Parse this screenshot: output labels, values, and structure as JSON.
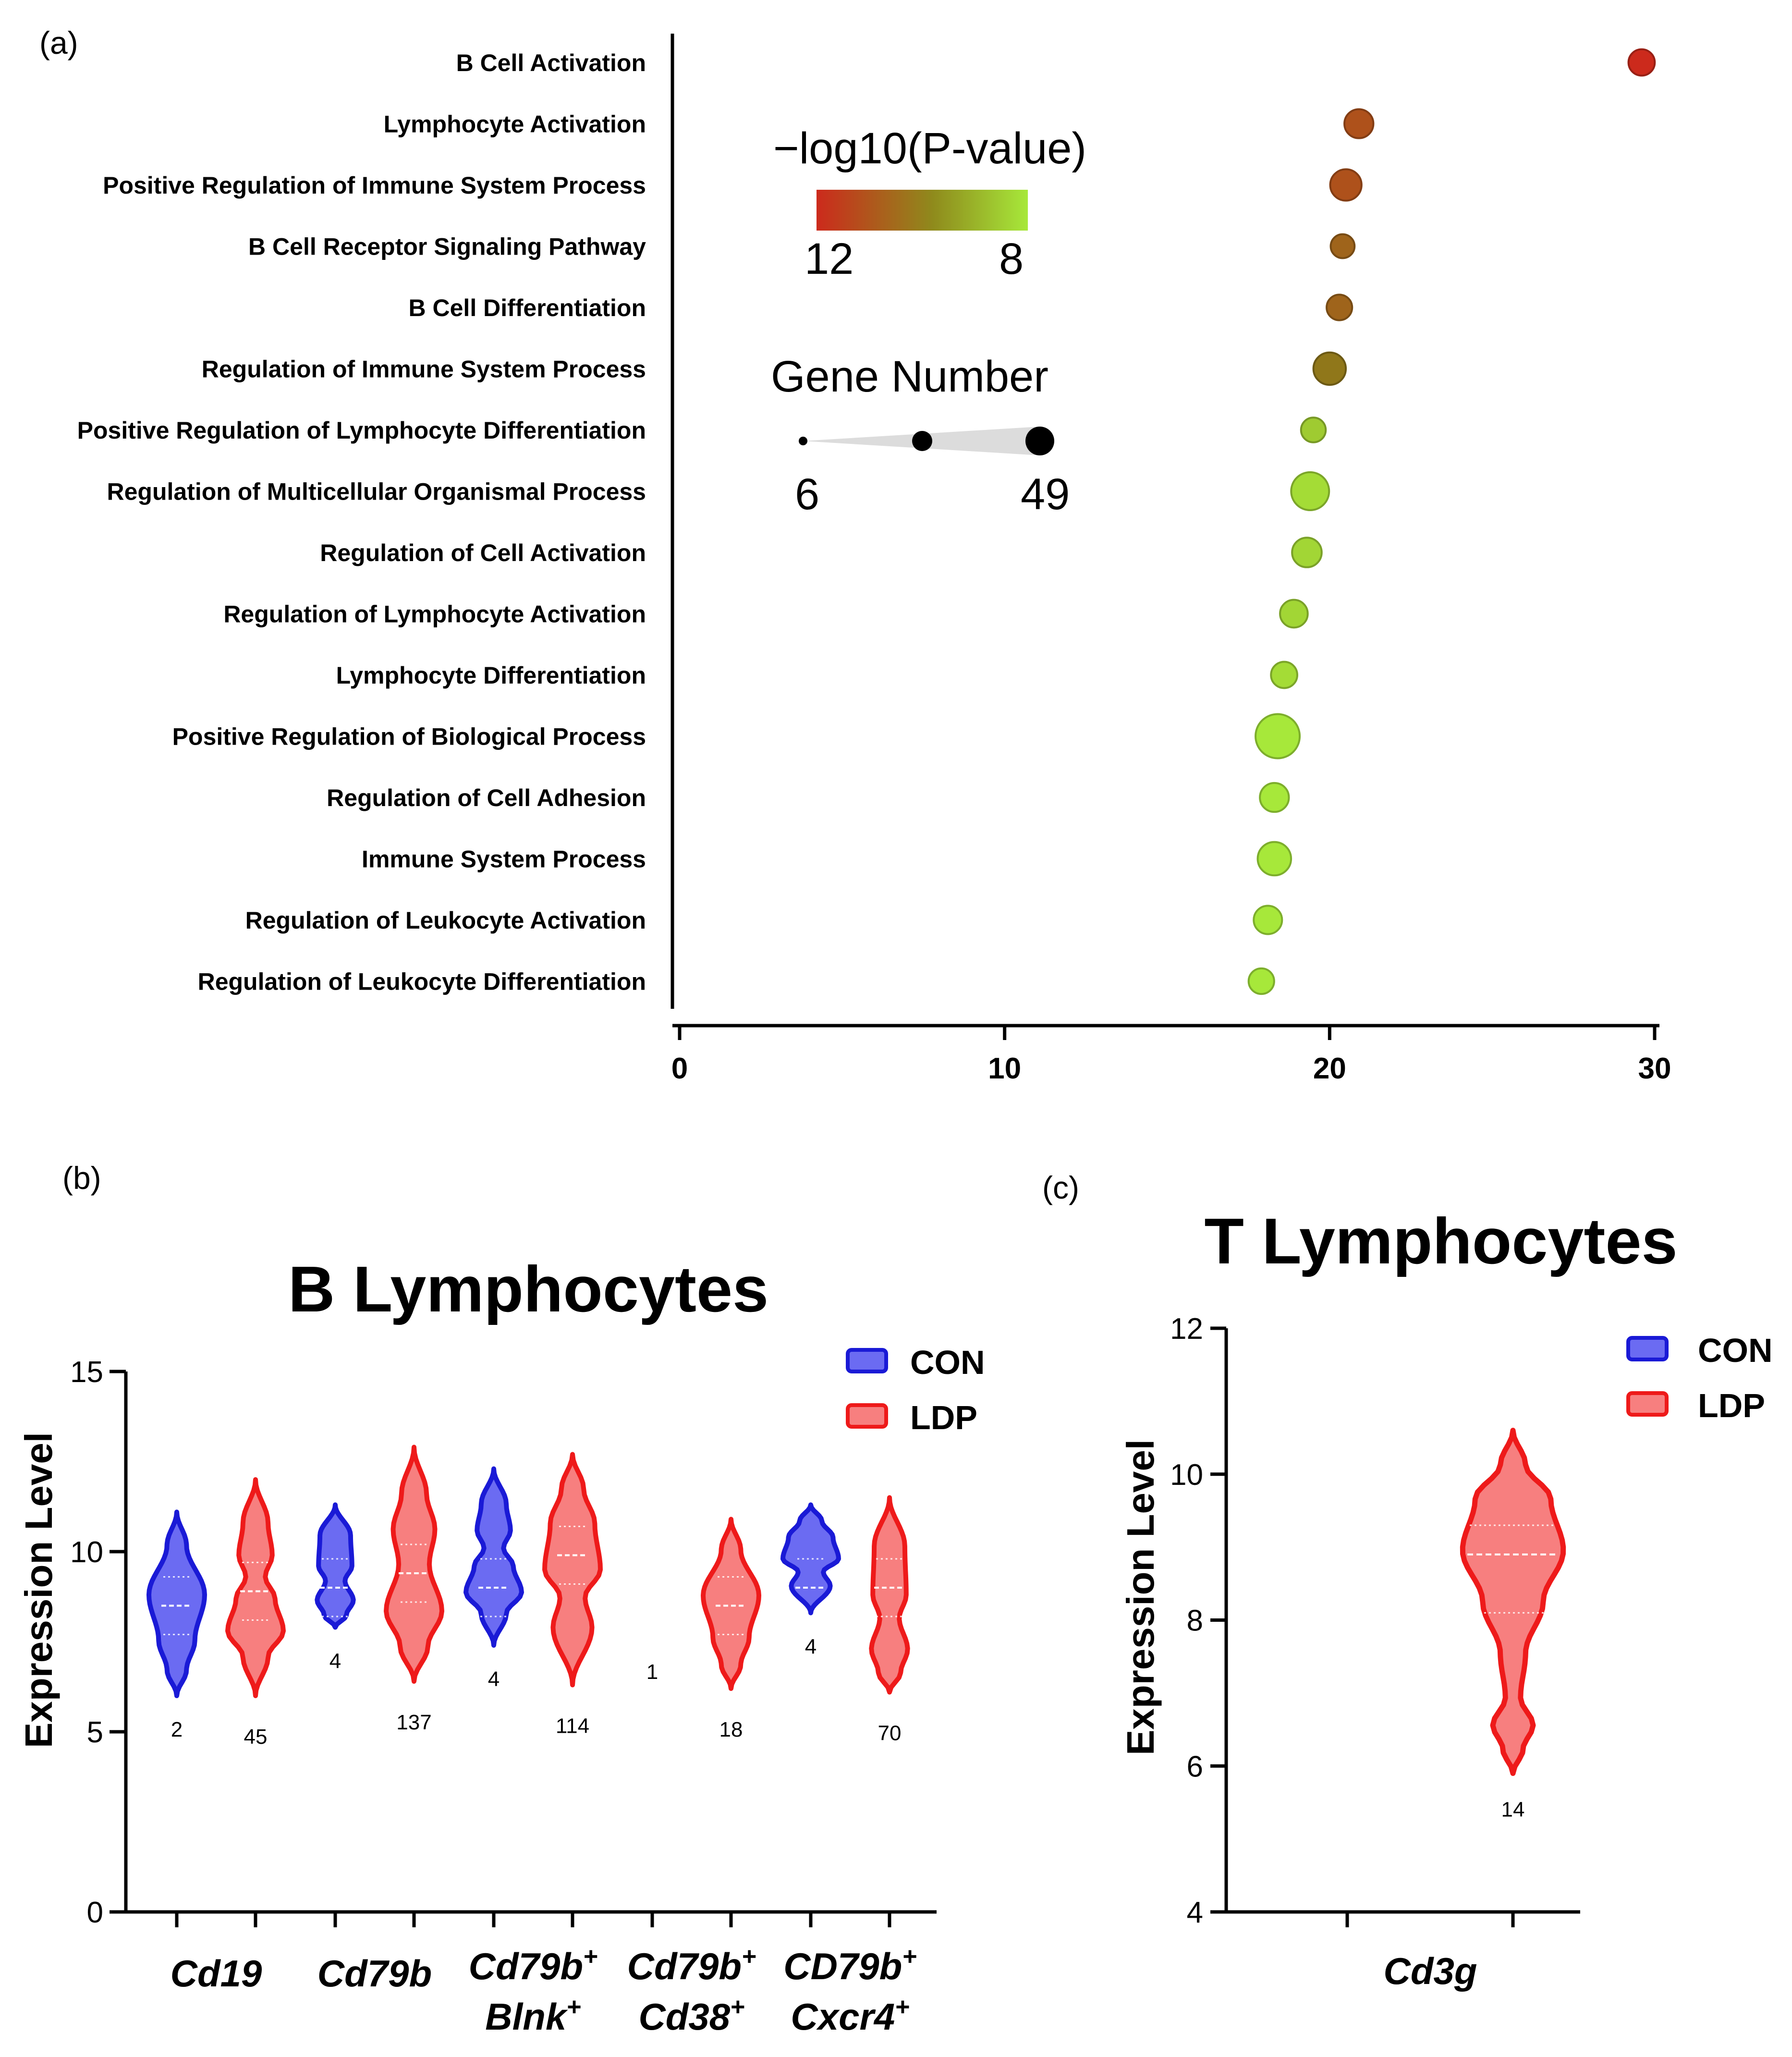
{
  "panel_labels": {
    "a": "(a)",
    "b": "(b)",
    "c": "(c)"
  },
  "colors": {
    "grad_high": "#cc2a1c",
    "grad_mid": "#8a7f1a",
    "grad_low": "#a7e83a",
    "con_fill": "#6b6bf2",
    "con_edge": "#1a1ad6",
    "ldp_fill": "#f77f7f",
    "ldp_edge": "#ee1a1a"
  },
  "chart_data": [
    {
      "type": "scatter",
      "title": "",
      "xlabel": "",
      "ylabel": "",
      "xlim": [
        0,
        30
      ],
      "xticks": [
        "0",
        "10",
        "20",
        "30"
      ],
      "categories": [
        "B Cell Activation",
        "Lymphocyte Activation",
        "Positive Regulation of Immune System Process",
        "B Cell Receptor Signaling Pathway",
        "B Cell Differentiation",
        "Regulation of Immune System Process",
        "Positive Regulation of Lymphocyte Differentiation",
        "Regulation of Multicellular Organismal Process",
        "Regulation of Cell Activation",
        "Regulation of Lymphocyte Activation",
        "Lymphocyte Differentiation",
        "Positive Regulation of Biological Process",
        "Regulation of Cell Adhesion",
        "Immune System Process",
        "Regulation of Leukocyte Activation",
        "Regulation of Leukocyte Differentiation"
      ],
      "x": [
        29.6,
        20.9,
        20.5,
        20.4,
        20.3,
        20.0,
        19.5,
        19.4,
        19.3,
        18.9,
        18.6,
        18.4,
        18.3,
        18.3,
        18.1,
        17.9
      ],
      "gene_number": [
        10,
        14,
        18,
        7,
        9,
        20,
        8,
        32,
        15,
        12,
        10,
        49,
        14,
        22,
        13,
        9
      ],
      "neg_log10_p": [
        12,
        11,
        11,
        10.5,
        10.5,
        10,
        8.5,
        8.2,
        8.3,
        8.3,
        8.2,
        8,
        8,
        8,
        8,
        8
      ],
      "legend": {
        "color_title": "−log10(P-value)",
        "color_min_label": "12",
        "color_max_label": "8",
        "size_title": "Gene Number",
        "size_min_label": "6",
        "size_max_label": "49"
      }
    },
    {
      "type": "violin",
      "title": "B Lymphocytes",
      "ylabel": "Expression Level",
      "ylim": [
        0,
        15
      ],
      "yticks": [
        "0",
        "5",
        "10",
        "15"
      ],
      "legend": [
        "CON",
        "LDP"
      ],
      "groups": [
        {
          "label": "Cd19",
          "sup": "",
          "label2": "",
          "sup2": ""
        },
        {
          "label": "Cd79b",
          "sup": "",
          "label2": "",
          "sup2": ""
        },
        {
          "label": "Cd79b",
          "sup": "+",
          "label2": "Blnk",
          "sup2": "+"
        },
        {
          "label": "Cd79b",
          "sup": "+",
          "label2": "Cd38",
          "sup2": "+"
        },
        {
          "label": "CD79b",
          "sup": "+",
          "label2": "Cxcr4",
          "sup2": "+"
        }
      ],
      "series": [
        {
          "name": "CON",
          "median": [
            8.5,
            9.0,
            9.0,
            null,
            9.0
          ],
          "min": [
            6.0,
            7.9,
            7.4,
            null,
            8.3
          ],
          "max": [
            11.1,
            11.3,
            12.3,
            null,
            11.3
          ],
          "n": [
            "2",
            "4",
            "4",
            "1",
            "4"
          ]
        },
        {
          "name": "LDP",
          "median": [
            8.9,
            9.4,
            9.9,
            8.5,
            9.0
          ],
          "min": [
            6.0,
            6.4,
            6.3,
            6.2,
            6.1
          ],
          "max": [
            12.0,
            12.9,
            12.7,
            10.9,
            11.5
          ],
          "n": [
            "45",
            "137",
            "114",
            "18",
            "70"
          ]
        }
      ]
    },
    {
      "type": "violin",
      "title": "T Lymphocytes",
      "ylabel": "Expression Level",
      "ylim": [
        4,
        12
      ],
      "yticks": [
        "4",
        "6",
        "8",
        "10",
        "12"
      ],
      "legend": [
        "CON",
        "LDP"
      ],
      "groups": [
        {
          "label": "Cd3g"
        }
      ],
      "series": [
        {
          "name": "LDP",
          "median": [
            8.9
          ],
          "q1": [
            8.1
          ],
          "q3": [
            9.3
          ],
          "min": [
            5.9
          ],
          "max": [
            10.6
          ],
          "n": [
            "14"
          ]
        }
      ]
    }
  ]
}
